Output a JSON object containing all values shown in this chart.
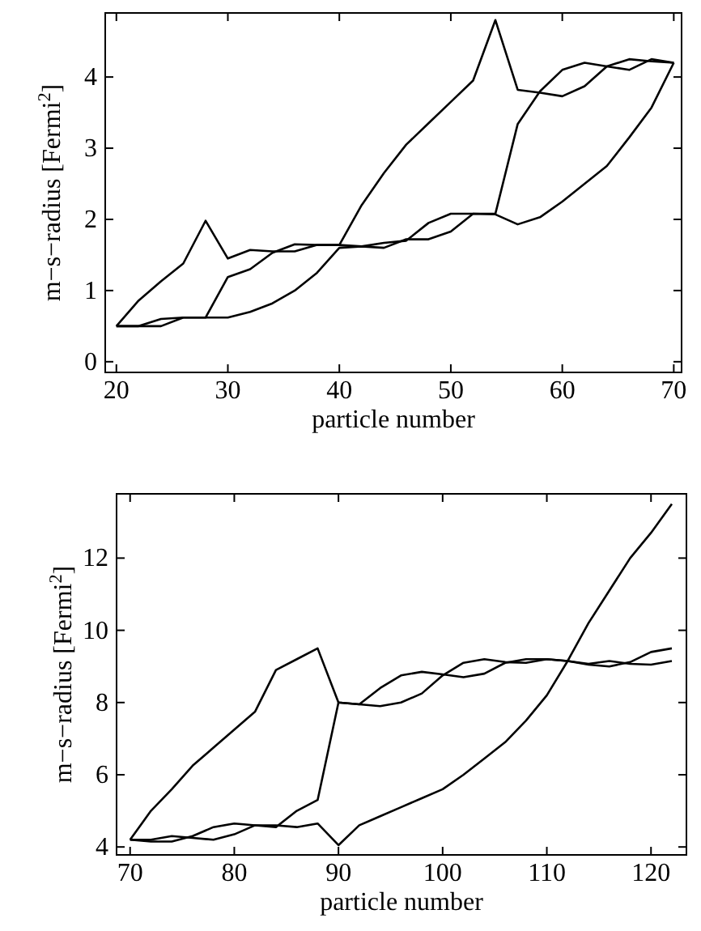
{
  "chart_data": [
    {
      "type": "line",
      "xlabel": "particle number",
      "ylabel": "m−s−radius [Fermi$^{2}$]",
      "xlim": [
        19,
        70.7
      ],
      "ylim": [
        -0.15,
        4.9
      ],
      "xticks": [
        20,
        30,
        40,
        50,
        60,
        70
      ],
      "yticks": [
        0,
        1,
        2,
        3,
        4
      ],
      "marker": "none",
      "line_style": "solid",
      "x": [
        20,
        22,
        24,
        26,
        28,
        30,
        32,
        34,
        36,
        38,
        40,
        42,
        44,
        46,
        48,
        50,
        52,
        54,
        56,
        58,
        60,
        62,
        64,
        66,
        68,
        70
      ],
      "series": [
        {
          "color": "#000000",
          "values": [
            0.5,
            0.86,
            1.13,
            1.38,
            1.98,
            1.45,
            1.57,
            1.55,
            1.55,
            1.64,
            1.64,
            2.2,
            2.65,
            3.05,
            3.35,
            3.65,
            3.95,
            4.8,
            3.82,
            3.78,
            3.73,
            3.87,
            4.15,
            4.25,
            4.22,
            4.2
          ]
        },
        {
          "color": "#000000",
          "values": [
            0.5,
            0.5,
            0.6,
            0.62,
            0.62,
            1.19,
            1.3,
            1.53,
            1.65,
            1.64,
            1.64,
            1.62,
            1.67,
            1.7,
            1.95,
            2.08,
            2.08,
            2.08,
            3.34,
            3.8,
            4.1,
            4.2,
            4.15,
            4.1,
            4.25,
            4.2
          ]
        },
        {
          "color": "#000000",
          "values": [
            0.5,
            0.5,
            0.5,
            0.62,
            0.62,
            0.62,
            0.7,
            0.82,
            1.0,
            1.25,
            1.6,
            1.62,
            1.6,
            1.72,
            1.72,
            1.83,
            2.08,
            2.07,
            1.93,
            2.03,
            2.25,
            2.5,
            2.75,
            3.15,
            3.57,
            4.2
          ]
        }
      ]
    },
    {
      "type": "line",
      "xlabel": "particle number",
      "ylabel": "m−s−radius [Fermi$^{2}$]",
      "xlim": [
        68.7,
        123.4
      ],
      "ylim": [
        3.78,
        13.78
      ],
      "xticks": [
        70,
        80,
        90,
        100,
        110,
        120
      ],
      "yticks": [
        4,
        6,
        8,
        10,
        12
      ],
      "marker": "none",
      "line_style": "solid",
      "x": [
        70,
        72,
        74,
        76,
        78,
        80,
        82,
        84,
        86,
        88,
        90,
        92,
        94,
        96,
        98,
        100,
        102,
        104,
        106,
        108,
        110,
        112,
        114,
        116,
        118,
        120,
        122
      ],
      "series": [
        {
          "color": "#000000",
          "values": [
            4.2,
            5.0,
            5.6,
            6.25,
            6.75,
            7.25,
            7.75,
            8.9,
            9.2,
            9.5,
            8.0,
            7.95,
            8.4,
            8.75,
            8.85,
            8.78,
            8.7,
            8.8,
            9.1,
            9.2,
            9.2,
            9.15,
            9.05,
            9.0,
            9.12,
            9.4,
            9.5
          ]
        },
        {
          "color": "#000000",
          "values": [
            4.2,
            4.15,
            4.15,
            4.3,
            4.55,
            4.65,
            4.6,
            4.55,
            5.0,
            5.3,
            8.0,
            7.95,
            7.9,
            8.0,
            8.25,
            8.75,
            9.1,
            9.2,
            9.12,
            9.1,
            9.2,
            9.15,
            9.07,
            9.15,
            9.07,
            9.05,
            9.15
          ]
        },
        {
          "color": "#000000",
          "values": [
            4.2,
            4.2,
            4.3,
            4.25,
            4.2,
            4.35,
            4.6,
            4.6,
            4.55,
            4.65,
            4.05,
            4.6,
            4.85,
            5.1,
            5.35,
            5.6,
            6.0,
            6.45,
            6.9,
            7.5,
            8.2,
            9.15,
            10.2,
            11.1,
            12.0,
            12.7,
            13.5
          ]
        }
      ]
    }
  ]
}
